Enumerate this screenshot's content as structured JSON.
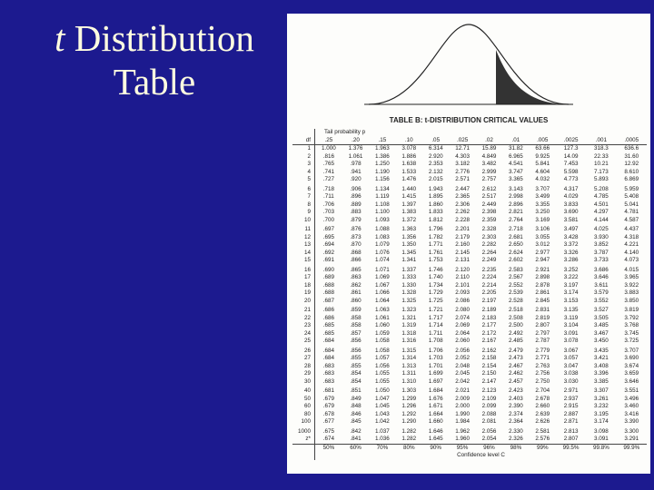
{
  "slide": {
    "title_variable": "t",
    "title_rest": "Distribution Table"
  },
  "table": {
    "caption": "TABLE B: t-DISTRIBUTION CRITICAL VALUES",
    "tail_label": "Tail probability p",
    "header": [
      "df",
      ".25",
      ".20",
      ".15",
      ".10",
      ".05",
      ".025",
      ".02",
      ".01",
      ".005",
      ".0025",
      ".001",
      ".0005"
    ],
    "rows": [
      [
        "1",
        "1.000",
        "1.376",
        "1.963",
        "3.078",
        "6.314",
        "12.71",
        "15.89",
        "31.82",
        "63.66",
        "127.3",
        "318.3",
        "636.6"
      ],
      [
        "2",
        ".816",
        "1.061",
        "1.386",
        "1.886",
        "2.920",
        "4.303",
        "4.849",
        "6.965",
        "9.925",
        "14.09",
        "22.33",
        "31.60"
      ],
      [
        "3",
        ".765",
        ".978",
        "1.250",
        "1.638",
        "2.353",
        "3.182",
        "3.482",
        "4.541",
        "5.841",
        "7.453",
        "10.21",
        "12.92"
      ],
      [
        "4",
        ".741",
        ".941",
        "1.190",
        "1.533",
        "2.132",
        "2.776",
        "2.999",
        "3.747",
        "4.604",
        "5.598",
        "7.173",
        "8.610"
      ],
      [
        "5",
        ".727",
        ".920",
        "1.156",
        "1.476",
        "2.015",
        "2.571",
        "2.757",
        "3.365",
        "4.032",
        "4.773",
        "5.893",
        "6.869"
      ],
      [
        "6",
        ".718",
        ".906",
        "1.134",
        "1.440",
        "1.943",
        "2.447",
        "2.612",
        "3.143",
        "3.707",
        "4.317",
        "5.208",
        "5.959"
      ],
      [
        "7",
        ".711",
        ".896",
        "1.119",
        "1.415",
        "1.895",
        "2.365",
        "2.517",
        "2.998",
        "3.499",
        "4.029",
        "4.785",
        "5.408"
      ],
      [
        "8",
        ".706",
        ".889",
        "1.108",
        "1.397",
        "1.860",
        "2.306",
        "2.449",
        "2.896",
        "3.355",
        "3.833",
        "4.501",
        "5.041"
      ],
      [
        "9",
        ".703",
        ".883",
        "1.100",
        "1.383",
        "1.833",
        "2.262",
        "2.398",
        "2.821",
        "3.250",
        "3.690",
        "4.297",
        "4.781"
      ],
      [
        "10",
        ".700",
        ".879",
        "1.093",
        "1.372",
        "1.812",
        "2.228",
        "2.359",
        "2.764",
        "3.169",
        "3.581",
        "4.144",
        "4.587"
      ],
      [
        "11",
        ".697",
        ".876",
        "1.088",
        "1.363",
        "1.796",
        "2.201",
        "2.328",
        "2.718",
        "3.106",
        "3.497",
        "4.025",
        "4.437"
      ],
      [
        "12",
        ".695",
        ".873",
        "1.083",
        "1.356",
        "1.782",
        "2.179",
        "2.303",
        "2.681",
        "3.055",
        "3.428",
        "3.930",
        "4.318"
      ],
      [
        "13",
        ".694",
        ".870",
        "1.079",
        "1.350",
        "1.771",
        "2.160",
        "2.282",
        "2.650",
        "3.012",
        "3.372",
        "3.852",
        "4.221"
      ],
      [
        "14",
        ".692",
        ".868",
        "1.076",
        "1.345",
        "1.761",
        "2.145",
        "2.264",
        "2.624",
        "2.977",
        "3.326",
        "3.787",
        "4.140"
      ],
      [
        "15",
        ".691",
        ".866",
        "1.074",
        "1.341",
        "1.753",
        "2.131",
        "2.249",
        "2.602",
        "2.947",
        "3.286",
        "3.733",
        "4.073"
      ],
      [
        "16",
        ".690",
        ".865",
        "1.071",
        "1.337",
        "1.746",
        "2.120",
        "2.235",
        "2.583",
        "2.921",
        "3.252",
        "3.686",
        "4.015"
      ],
      [
        "17",
        ".689",
        ".863",
        "1.069",
        "1.333",
        "1.740",
        "2.110",
        "2.224",
        "2.567",
        "2.898",
        "3.222",
        "3.646",
        "3.965"
      ],
      [
        "18",
        ".688",
        ".862",
        "1.067",
        "1.330",
        "1.734",
        "2.101",
        "2.214",
        "2.552",
        "2.878",
        "3.197",
        "3.611",
        "3.922"
      ],
      [
        "19",
        ".688",
        ".861",
        "1.066",
        "1.328",
        "1.729",
        "2.093",
        "2.205",
        "2.539",
        "2.861",
        "3.174",
        "3.579",
        "3.883"
      ],
      [
        "20",
        ".687",
        ".860",
        "1.064",
        "1.325",
        "1.725",
        "2.086",
        "2.197",
        "2.528",
        "2.845",
        "3.153",
        "3.552",
        "3.850"
      ],
      [
        "21",
        ".686",
        ".859",
        "1.063",
        "1.323",
        "1.721",
        "2.080",
        "2.189",
        "2.518",
        "2.831",
        "3.135",
        "3.527",
        "3.819"
      ],
      [
        "22",
        ".686",
        ".858",
        "1.061",
        "1.321",
        "1.717",
        "2.074",
        "2.183",
        "2.508",
        "2.819",
        "3.119",
        "3.505",
        "3.792"
      ],
      [
        "23",
        ".685",
        ".858",
        "1.060",
        "1.319",
        "1.714",
        "2.069",
        "2.177",
        "2.500",
        "2.807",
        "3.104",
        "3.485",
        "3.768"
      ],
      [
        "24",
        ".685",
        ".857",
        "1.059",
        "1.318",
        "1.711",
        "2.064",
        "2.172",
        "2.492",
        "2.797",
        "3.091",
        "3.467",
        "3.745"
      ],
      [
        "25",
        ".684",
        ".856",
        "1.058",
        "1.316",
        "1.708",
        "2.060",
        "2.167",
        "2.485",
        "2.787",
        "3.078",
        "3.450",
        "3.725"
      ],
      [
        "26",
        ".684",
        ".856",
        "1.058",
        "1.315",
        "1.706",
        "2.056",
        "2.162",
        "2.479",
        "2.779",
        "3.067",
        "3.435",
        "3.707"
      ],
      [
        "27",
        ".684",
        ".855",
        "1.057",
        "1.314",
        "1.703",
        "2.052",
        "2.158",
        "2.473",
        "2.771",
        "3.057",
        "3.421",
        "3.690"
      ],
      [
        "28",
        ".683",
        ".855",
        "1.056",
        "1.313",
        "1.701",
        "2.048",
        "2.154",
        "2.467",
        "2.763",
        "3.047",
        "3.408",
        "3.674"
      ],
      [
        "29",
        ".683",
        ".854",
        "1.055",
        "1.311",
        "1.699",
        "2.045",
        "2.150",
        "2.462",
        "2.756",
        "3.038",
        "3.396",
        "3.659"
      ],
      [
        "30",
        ".683",
        ".854",
        "1.055",
        "1.310",
        "1.697",
        "2.042",
        "2.147",
        "2.457",
        "2.750",
        "3.030",
        "3.385",
        "3.646"
      ],
      [
        "40",
        ".681",
        ".851",
        "1.050",
        "1.303",
        "1.684",
        "2.021",
        "2.123",
        "2.423",
        "2.704",
        "2.971",
        "3.307",
        "3.551"
      ],
      [
        "50",
        ".679",
        ".849",
        "1.047",
        "1.299",
        "1.676",
        "2.009",
        "2.109",
        "2.403",
        "2.678",
        "2.937",
        "3.261",
        "3.496"
      ],
      [
        "60",
        ".679",
        ".848",
        "1.045",
        "1.296",
        "1.671",
        "2.000",
        "2.099",
        "2.390",
        "2.660",
        "2.915",
        "3.232",
        "3.460"
      ],
      [
        "80",
        ".678",
        ".846",
        "1.043",
        "1.292",
        "1.664",
        "1.990",
        "2.088",
        "2.374",
        "2.639",
        "2.887",
        "3.195",
        "3.416"
      ],
      [
        "100",
        ".677",
        ".845",
        "1.042",
        "1.290",
        "1.660",
        "1.984",
        "2.081",
        "2.364",
        "2.626",
        "2.871",
        "3.174",
        "3.390"
      ],
      [
        "1000",
        ".675",
        ".842",
        "1.037",
        "1.282",
        "1.646",
        "1.962",
        "2.056",
        "2.330",
        "2.581",
        "2.813",
        "3.098",
        "3.300"
      ],
      [
        "z*",
        ".674",
        ".841",
        "1.036",
        "1.282",
        "1.645",
        "1.960",
        "2.054",
        "2.326",
        "2.576",
        "2.807",
        "3.091",
        "3.291"
      ]
    ],
    "confidence": [
      "50%",
      "60%",
      "70%",
      "80%",
      "90%",
      "95%",
      "96%",
      "98%",
      "99%",
      "99.5%",
      "99.8%",
      "99.9%"
    ],
    "confidence_label": "Confidence level C"
  }
}
